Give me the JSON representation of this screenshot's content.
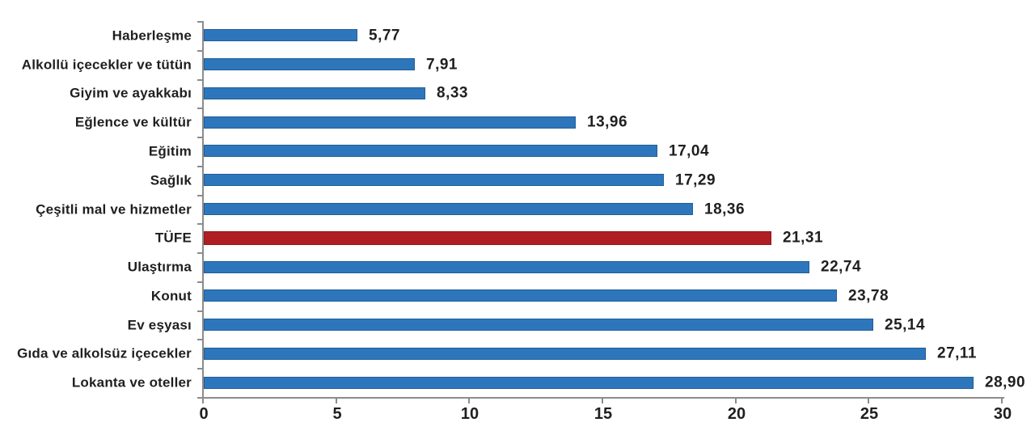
{
  "chart_data": {
    "type": "bar",
    "orientation": "horizontal",
    "categories": [
      "Haberleşme",
      "Alkollü içecekler ve tütün",
      "Giyim ve ayakkabı",
      "Eğlence ve kültür",
      "Eğitim",
      "Sağlık",
      "Çeşitli mal ve hizmetler",
      "TÜFE",
      "Ulaştırma",
      "Konut",
      "Ev eşyası",
      "Gıda ve alkolsüz içecekler",
      "Lokanta ve oteller"
    ],
    "values": [
      5.77,
      7.91,
      8.33,
      13.96,
      17.04,
      17.29,
      18.36,
      21.31,
      22.74,
      23.78,
      25.14,
      27.11,
      28.9
    ],
    "value_labels": [
      "5,77",
      "7,91",
      "8,33",
      "13,96",
      "17,04",
      "17,29",
      "18,36",
      "21,31",
      "22,74",
      "23,78",
      "25,14",
      "27,11",
      "28,90"
    ],
    "highlight_index": 7,
    "bar_color": "#2E76BC",
    "bar_border_color": "#205E97",
    "highlight_color": "#B01E24",
    "highlight_border_color": "#8C181D",
    "axis_color": "#8C8C8C",
    "text_color": "#1F1F1F",
    "xlim": [
      0,
      30
    ],
    "x_ticks": [
      0,
      5,
      10,
      15,
      20,
      25,
      30
    ],
    "x_tick_labels": [
      "0",
      "5",
      "10",
      "15",
      "20",
      "25",
      "30"
    ],
    "grid": false,
    "legend": false,
    "title": "",
    "xlabel": "",
    "ylabel": ""
  }
}
